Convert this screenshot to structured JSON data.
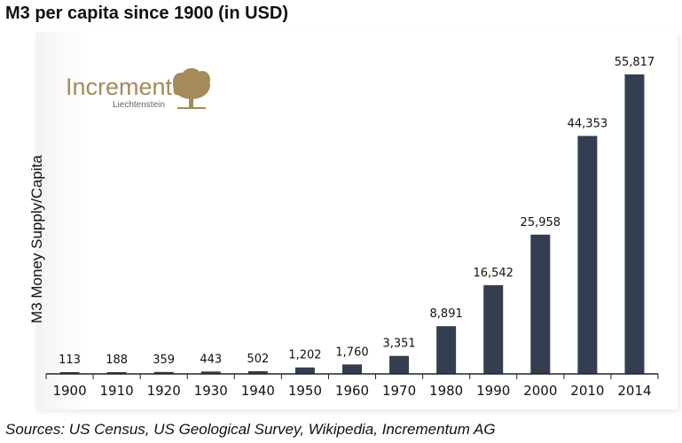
{
  "title": "M3 per capita since 1900 (in USD)",
  "source": "Sources: US Census, US Geological Survey, Wikipedia, Incrementum AG",
  "logo": {
    "name": "Incrementum",
    "subtitle": "Liechtenstein",
    "icon": "tree-icon",
    "color": "#a58a5a"
  },
  "colors": {
    "bar": "#333f50",
    "axis": "#222222"
  },
  "chart_data": {
    "type": "bar",
    "title": "M3 per capita since 1900 (in USD)",
    "xlabel": "",
    "ylabel": "M3 Money Supply/Capita",
    "categories": [
      "1900",
      "1910",
      "1920",
      "1930",
      "1940",
      "1950",
      "1960",
      "1970",
      "1980",
      "1990",
      "2000",
      "2010",
      "2014"
    ],
    "values": [
      113,
      188,
      359,
      443,
      502,
      1202,
      1760,
      3351,
      8891,
      16542,
      25958,
      44353,
      55817
    ],
    "value_labels": [
      "113",
      "188",
      "359",
      "443",
      "502",
      "1,202",
      "1,760",
      "3,351",
      "8,891",
      "16,542",
      "25,958",
      "44,353",
      "55,817"
    ],
    "ylim": [
      0,
      60000
    ],
    "grid": false,
    "legend": "none"
  }
}
